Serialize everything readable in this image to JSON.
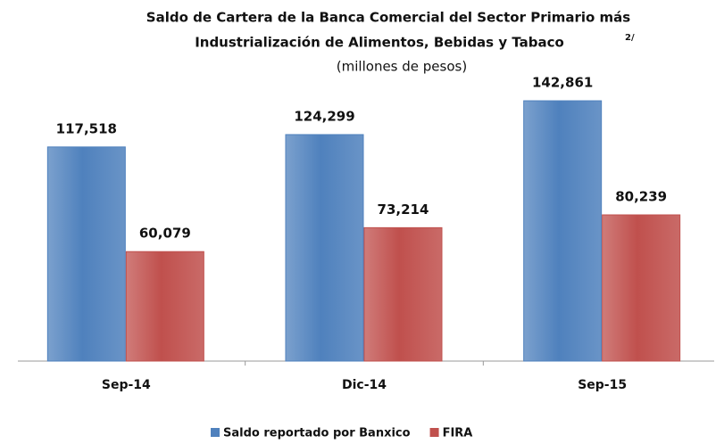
{
  "chart_data": {
    "type": "bar",
    "title": [
      "Saldo de Cartera de la Banca Comercial del Sector Primario más",
      "Industrialización de Alimentos, Bebidas y Tabaco"
    ],
    "title_note": "2/",
    "subtitle": "(millones de pesos)",
    "categories": [
      "Sep-14",
      "Dic-14",
      "Sep-15"
    ],
    "series": [
      {
        "name": "Saldo reportado por Banxico",
        "color": "#4f81bd",
        "values": [
          117518,
          124299,
          142861
        ],
        "value_labels": [
          "117,518",
          "124,299",
          "142,861"
        ]
      },
      {
        "name": "FIRA",
        "color": "#c0504d",
        "values": [
          60079,
          73214,
          80239
        ],
        "value_labels": [
          "60,079",
          "73,214",
          "80,239"
        ]
      }
    ],
    "ylim": [
      0,
      160000
    ],
    "legend": "bottom"
  }
}
